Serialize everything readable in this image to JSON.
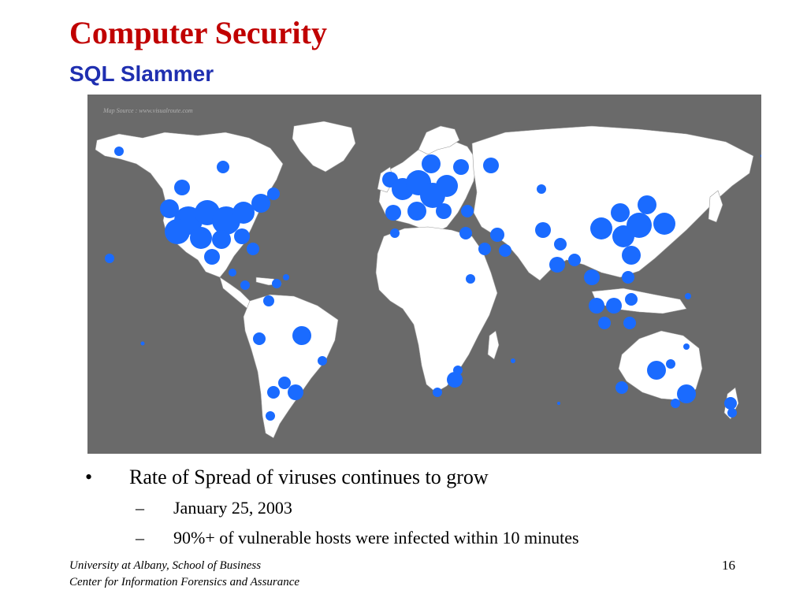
{
  "slide": {
    "title": "Computer Security",
    "subtitle": "SQL Slammer",
    "map_source": "Map Source : www.visualroute.com",
    "bullets": [
      {
        "text": "Rate of Spread of viruses continues to grow",
        "marker": "•"
      }
    ],
    "sub_bullets": [
      {
        "text": "January 25, 2003",
        "marker": "–"
      },
      {
        "text": "90%+ of vulnerable hosts were infected within 10 minutes",
        "marker": "–"
      }
    ],
    "footer": {
      "line1": "University at Albany, School of Business",
      "line2": "Center for Information Forensics and Assurance"
    },
    "page_number": "16"
  },
  "colors": {
    "title": "#c00000",
    "subtitle": "#1f2fb0",
    "ocean": "#6a6a6a",
    "land": "#ffffff",
    "infection_dot": "#1a6bff"
  },
  "icons": {
    "bullet": "bullet-dot",
    "sub_bullet": "en-dash"
  }
}
